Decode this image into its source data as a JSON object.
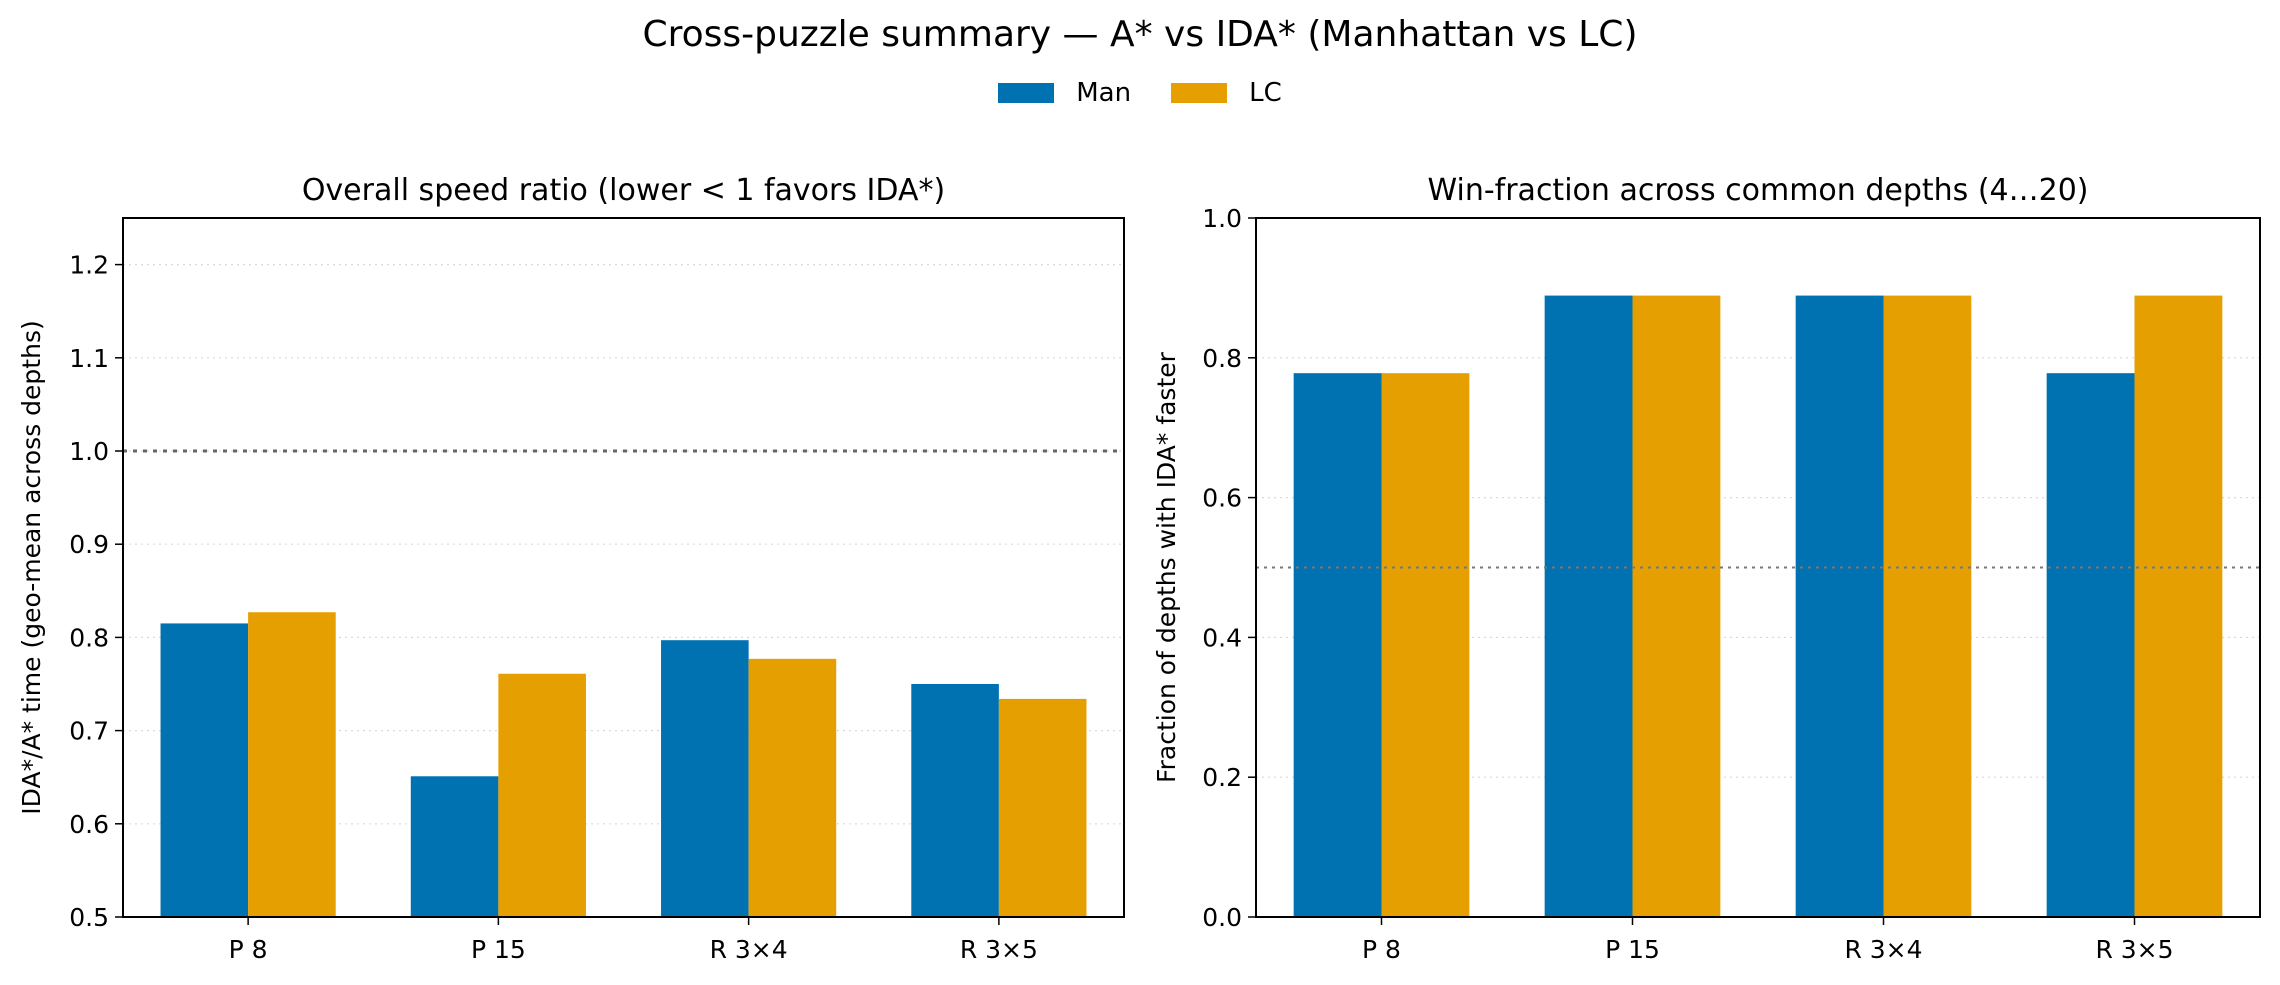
{
  "suptitle": "Cross-puzzle summary — A* vs IDA* (Manhattan vs LC)",
  "legend": [
    {
      "name": "Man",
      "color": "#0072b2"
    },
    {
      "name": "LC",
      "color": "#e69f00"
    }
  ],
  "chart_data": [
    {
      "type": "bar",
      "title": "Overall speed ratio (lower < 1 favors IDA*)",
      "xlabel": "",
      "ylabel": "IDA*/A* time (geo-mean across depths)",
      "categories": [
        "P 8",
        "P 15",
        "R 3×4",
        "R 3×5"
      ],
      "series": [
        {
          "name": "Man",
          "color": "#0072b2",
          "values": [
            0.815,
            0.651,
            0.797,
            0.75
          ]
        },
        {
          "name": "LC",
          "color": "#e69f00",
          "values": [
            0.827,
            0.761,
            0.777,
            0.734
          ]
        }
      ],
      "ylim": [
        0.5,
        1.25
      ],
      "yticks": [
        0.5,
        0.6,
        0.7,
        0.8,
        0.9,
        1.0,
        1.1,
        1.2
      ],
      "ytick_labels": [
        "0.5",
        "0.6",
        "0.7",
        "0.8",
        "0.9",
        "1.0",
        "1.1",
        "1.2"
      ],
      "reference_line": 1.0,
      "grid": "y-dotted"
    },
    {
      "type": "bar",
      "title": "Win-fraction across common depths (4…20)",
      "xlabel": "",
      "ylabel": "Fraction of depths with IDA* faster",
      "categories": [
        "P 8",
        "P 15",
        "R 3×4",
        "R 3×5"
      ],
      "series": [
        {
          "name": "Man",
          "color": "#0072b2",
          "values": [
            0.778,
            0.889,
            0.889,
            0.778
          ]
        },
        {
          "name": "LC",
          "color": "#e69f00",
          "values": [
            0.778,
            0.889,
            0.889,
            0.889
          ]
        }
      ],
      "ylim": [
        0.0,
        1.0
      ],
      "yticks": [
        0.0,
        0.2,
        0.4,
        0.6,
        0.8,
        1.0
      ],
      "ytick_labels": [
        "0.0",
        "0.2",
        "0.4",
        "0.6",
        "0.8",
        "1.0"
      ],
      "reference_line": 0.5,
      "grid": "y-dotted"
    }
  ]
}
